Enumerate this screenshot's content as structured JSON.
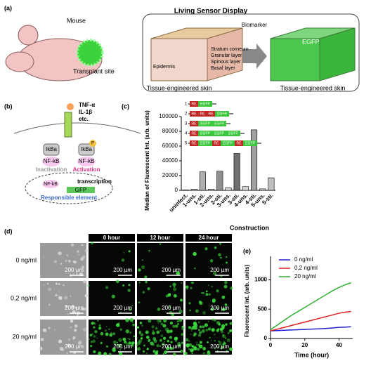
{
  "panel_labels": [
    "(a)",
    "(b)",
    "(c)",
    "(d)",
    "(e)"
  ],
  "panel_a": {
    "mouse": "Mouse",
    "transplant": "Transplant site",
    "box_title": "Living Sensor Display",
    "biomarker": "Biomarker",
    "egfp": "EGFP",
    "layers": [
      "Stratum corneum",
      "Granular layer",
      "Spinous layer",
      "Basal layer"
    ],
    "epidermis": "Epidermis",
    "skin": "Tissue-engineered skin"
  },
  "panel_b": {
    "ligands": [
      "TNF-α",
      "IL-1β",
      "etc."
    ],
    "ikba": "IkBa",
    "p": "P",
    "nfkb": "NF-kB",
    "inactivation": "Inactivation",
    "activation": "Activation",
    "transcription": "transcription",
    "gfp": "GFP",
    "element": "Responsible element"
  },
  "panel_d": {
    "columns": [
      "0 hour",
      "12 hour",
      "24 hour"
    ],
    "rows": [
      "0 ng/ml",
      "0,2 ng/ml",
      "20 ng/ml"
    ],
    "scale": "200 µm"
  },
  "chart_data": [
    {
      "type": "bar",
      "title": "Construction",
      "y_label": "Median of Fluorescent Int. (arb. units)",
      "categories": [
        "uninfect.",
        "1-uns.",
        "1-sti.",
        "2-uns.",
        "2-sti.",
        "3-uns.",
        "3-sti.",
        "4-uns.",
        "4-sti.",
        "5-uns.",
        "5-sti."
      ],
      "values": [
        500,
        1500,
        25000,
        1500,
        26000,
        3500,
        50000,
        5000,
        82000,
        2000,
        17000
      ],
      "colors": [
        "#ffffff",
        "#d9d9d9",
        "#b0b0b0",
        "#d9d9d9",
        "#909090",
        "#d9d9d9",
        "#707070",
        "#d9d9d9",
        "#a0a0a0",
        "#d9d9d9",
        "#c0c0c0"
      ],
      "ylim": [
        0,
        100000
      ],
      "yticks": [
        0,
        20000,
        40000,
        60000,
        80000,
        100000
      ],
      "constructs": {
        "numbers": [
          "1",
          "2",
          "3",
          "4",
          "5"
        ],
        "parts": [
          [
            "RE",
            "EGFP"
          ],
          [
            "RE",
            "RE",
            "RE",
            "EGFP"
          ],
          [
            "RE",
            "EGFP",
            "EGFP"
          ],
          [
            "RE",
            "EGFP",
            "EGFP",
            "EGFP"
          ],
          [
            "RE",
            "EGFP",
            "RE",
            "EGFP",
            "RE",
            "EGFP"
          ]
        ]
      }
    },
    {
      "type": "line",
      "x_label": "Time (hour)",
      "y_label": "Fluorescent Int. (arb. units)",
      "x": [
        0,
        4,
        8,
        12,
        16,
        20,
        24,
        28,
        32,
        36,
        40,
        44,
        47
      ],
      "series": [
        {
          "name": "0 ng/ml",
          "color": "#2020d0",
          "values": [
            130,
            135,
            140,
            145,
            150,
            155,
            160,
            165,
            170,
            180,
            190,
            195,
            200
          ]
        },
        {
          "name": "0,2 ng/ml",
          "color": "#e02020",
          "values": [
            130,
            160,
            190,
            220,
            250,
            280,
            310,
            340,
            370,
            400,
            430,
            450,
            460
          ]
        },
        {
          "name": "20 ng/ml",
          "color": "#30b030",
          "values": [
            150,
            230,
            310,
            390,
            460,
            530,
            600,
            670,
            740,
            810,
            870,
            920,
            950
          ]
        }
      ],
      "xlim": [
        0,
        48
      ],
      "xticks": [
        0,
        20,
        40
      ],
      "ylim": [
        0,
        1400
      ],
      "yticks": [
        0,
        500,
        1000
      ],
      "legend": "upper left"
    }
  ]
}
